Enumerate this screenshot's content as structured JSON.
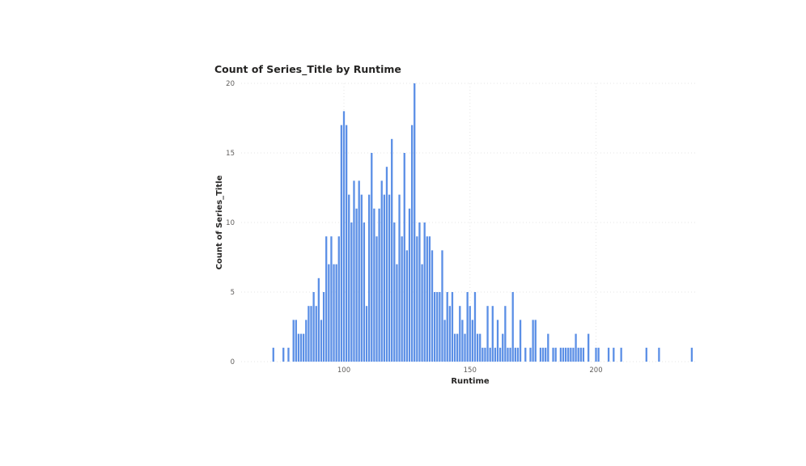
{
  "chart_data": {
    "type": "bar",
    "title": "Count of Series_Title by Runtime",
    "xlabel": "Runtime",
    "ylabel": "Count of Series_Title",
    "xlim": [
      64,
      238
    ],
    "ylim": [
      0,
      20
    ],
    "x_ticks": [
      100,
      150,
      200
    ],
    "y_ticks": [
      0,
      5,
      10,
      15,
      20
    ],
    "grid": true,
    "bar_color": "#5b8fe6",
    "x": [
      72,
      76,
      78,
      80,
      81,
      82,
      83,
      84,
      85,
      86,
      87,
      88,
      89,
      90,
      91,
      92,
      93,
      94,
      95,
      96,
      97,
      98,
      99,
      100,
      101,
      102,
      103,
      104,
      105,
      106,
      107,
      108,
      109,
      110,
      111,
      112,
      113,
      114,
      115,
      116,
      117,
      118,
      119,
      120,
      121,
      122,
      123,
      124,
      125,
      126,
      127,
      128,
      129,
      130,
      131,
      132,
      133,
      134,
      135,
      136,
      137,
      138,
      139,
      140,
      141,
      142,
      143,
      144,
      145,
      146,
      147,
      148,
      149,
      150,
      151,
      152,
      153,
      154,
      155,
      156,
      157,
      158,
      159,
      160,
      161,
      162,
      163,
      164,
      165,
      166,
      167,
      168,
      169,
      170,
      172,
      174,
      175,
      176,
      178,
      179,
      180,
      181,
      183,
      184,
      186,
      187,
      188,
      189,
      190,
      191,
      192,
      193,
      194,
      195,
      197,
      200,
      201,
      205,
      207,
      210,
      220,
      225,
      238
    ],
    "values": [
      1,
      1,
      1,
      3,
      3,
      2,
      2,
      2,
      3,
      4,
      4,
      5,
      4,
      6,
      3,
      5,
      9,
      7,
      9,
      7,
      7,
      9,
      17,
      18,
      17,
      12,
      10,
      13,
      11,
      13,
      12,
      10,
      4,
      12,
      15,
      11,
      9,
      11,
      13,
      12,
      14,
      12,
      16,
      10,
      7,
      12,
      9,
      15,
      8,
      11,
      17,
      20,
      9,
      10,
      7,
      10,
      9,
      9,
      8,
      5,
      5,
      5,
      8,
      3,
      5,
      4,
      5,
      2,
      2,
      4,
      3,
      2,
      5,
      4,
      3,
      5,
      2,
      2,
      1,
      1,
      4,
      1,
      4,
      1,
      3,
      1,
      2,
      4,
      1,
      1,
      5,
      1,
      1,
      3,
      1,
      1,
      3,
      3,
      1,
      1,
      1,
      2,
      1,
      1,
      1,
      1,
      1,
      1,
      1,
      1,
      2,
      1,
      1,
      1,
      2,
      1,
      1,
      1,
      1,
      1,
      1,
      1,
      1
    ]
  }
}
